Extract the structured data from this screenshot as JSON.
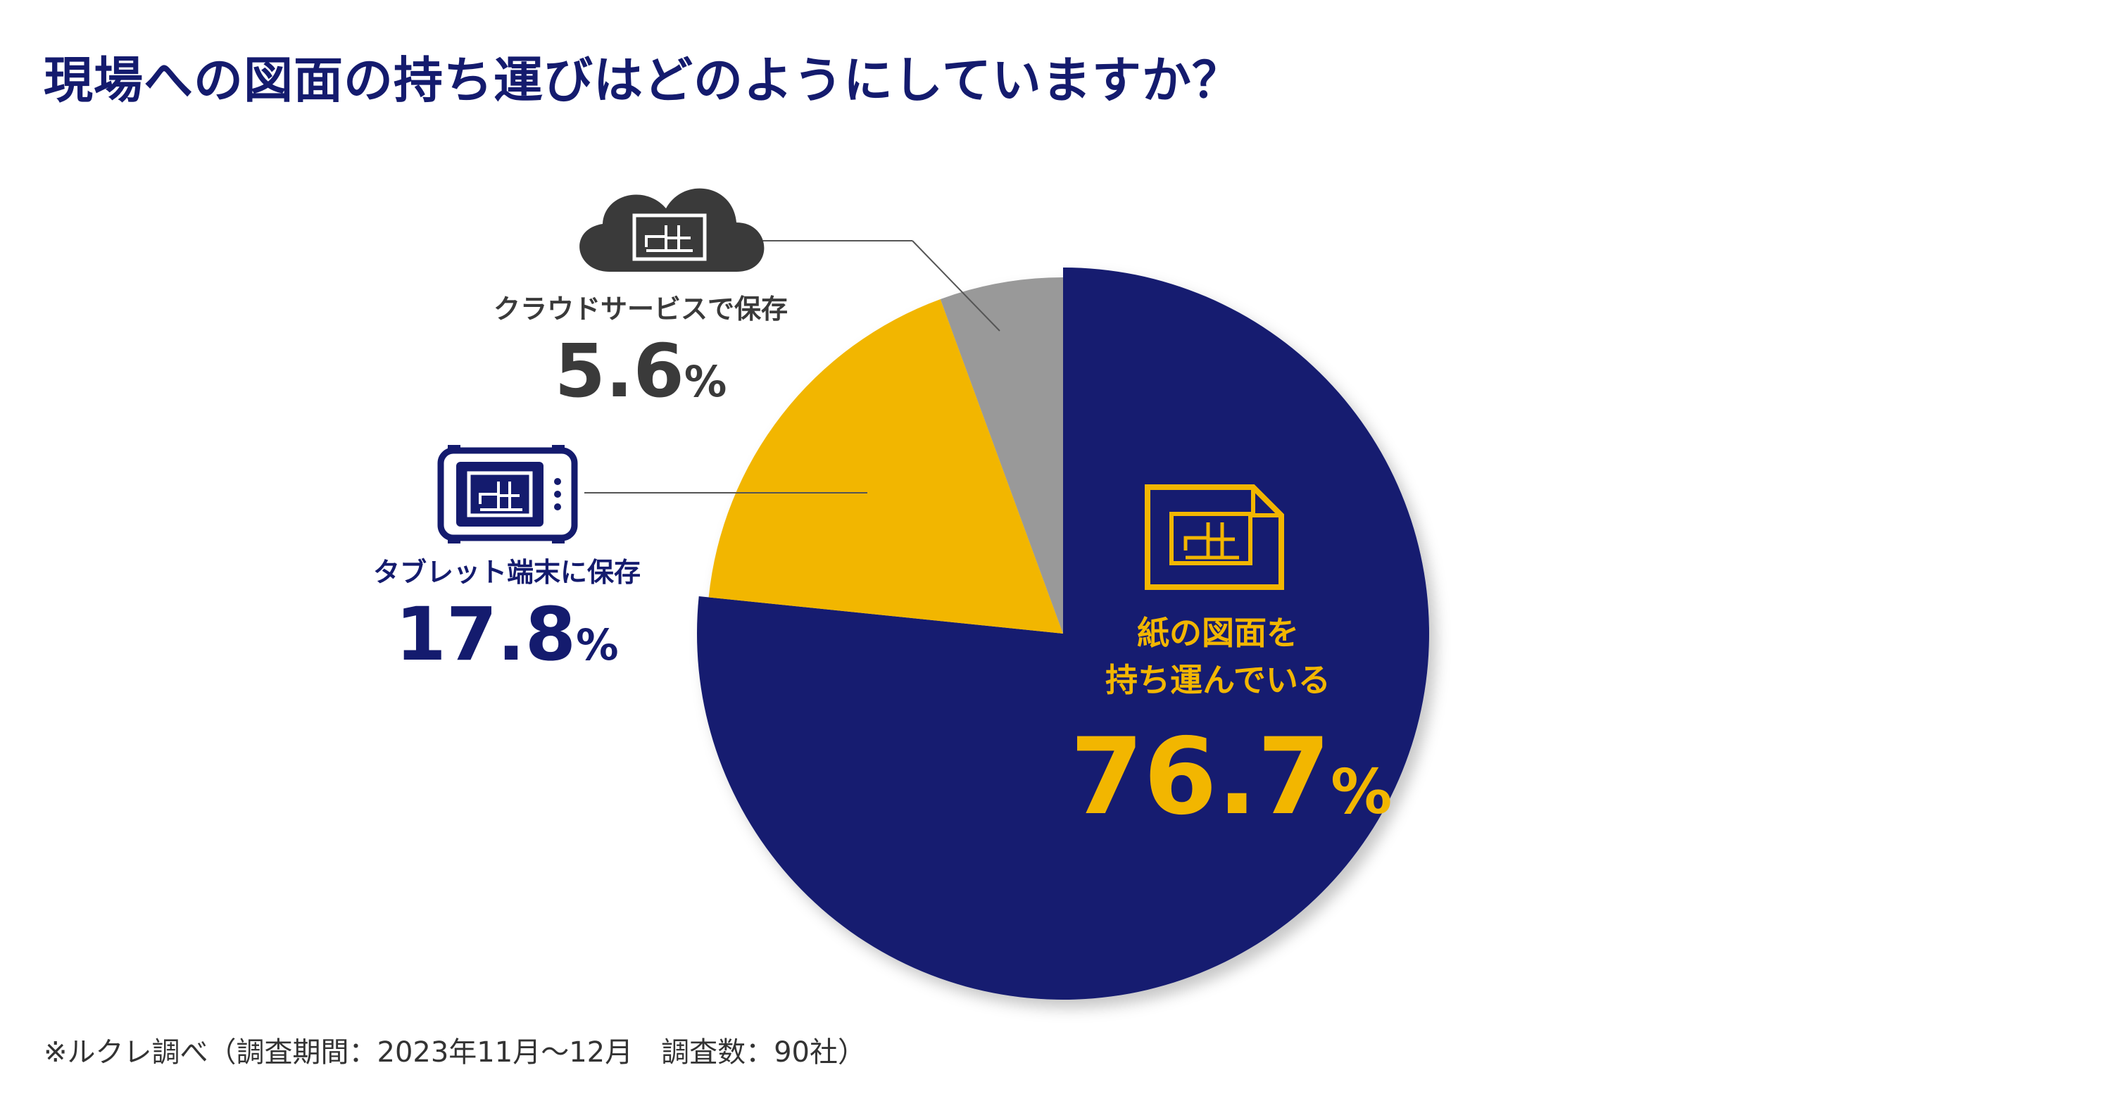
{
  "title": "現場への図面の持ち運びはどのようにしていますか？",
  "footnote": "※ルクレ調べ（調査期間：2023年11月〜12月　調査数：90社）",
  "colors": {
    "title": "#141b6e",
    "paper": "#131b70",
    "tablet": "#f2b600",
    "cloud": "#999999",
    "leader": "#555555"
  },
  "chart_data": {
    "type": "pie",
    "title": "現場への図面の持ち運びはどのようにしていますか？",
    "slices": [
      {
        "label": "紙の図面を持ち運んでいる",
        "label_line1": "紙の図面を",
        "label_line2": "持ち運んでいる",
        "value": 76.7,
        "display": "76.7",
        "unit": "%",
        "color": "#131b70",
        "icon": "floorplan-document-icon"
      },
      {
        "label": "タブレット端末に保存",
        "value": 17.8,
        "display": "17.8",
        "unit": "%",
        "color": "#f2b600",
        "icon": "tablet-floorplan-icon"
      },
      {
        "label": "クラウドサービスで保存",
        "value": 5.6,
        "display": "5.6",
        "unit": "%",
        "color": "#999999",
        "icon": "cloud-floorplan-icon"
      }
    ]
  }
}
